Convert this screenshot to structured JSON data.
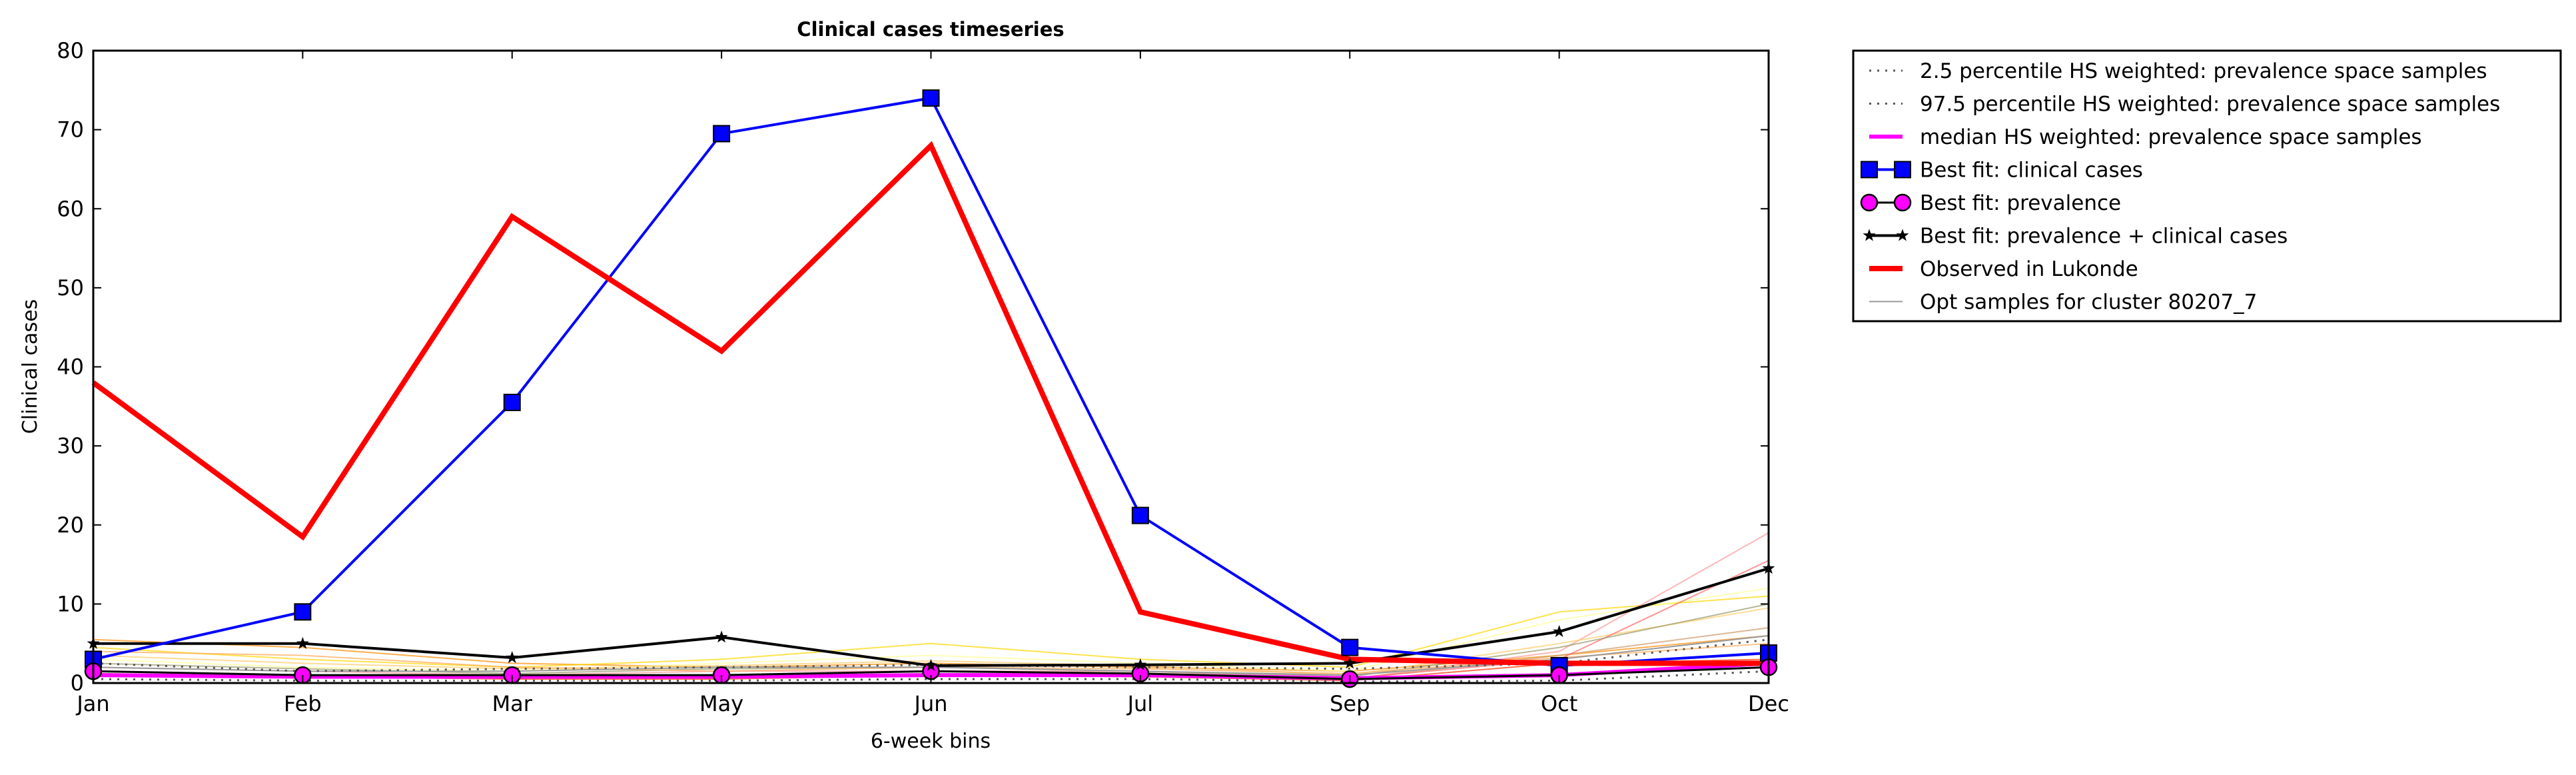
{
  "chart_data": {
    "type": "line",
    "title": "Clinical cases timeseries",
    "xlabel": "6-week bins",
    "ylabel": "Clinical cases",
    "categories": [
      "Jan",
      "Feb",
      "Mar",
      "May",
      "Jun",
      "Jul",
      "Sep",
      "Oct",
      "Dec"
    ],
    "ylim": [
      0,
      80
    ],
    "yticks": [
      0,
      10,
      20,
      30,
      40,
      50,
      60,
      70,
      80
    ],
    "grid": false,
    "legend_position": "outside-top-right",
    "series": [
      {
        "name": "2.5 percentile HS weighted: prevalence space samples",
        "style": "dotted",
        "color": "#555555",
        "values": [
          0.5,
          0.3,
          0.3,
          0.3,
          0.5,
          0.5,
          0.2,
          0.3,
          1.5
        ]
      },
      {
        "name": "97.5 percentile HS weighted: prevalence space samples",
        "style": "dotted",
        "color": "#555555",
        "values": [
          2.5,
          1.5,
          1.8,
          2.0,
          2.3,
          2.0,
          1.8,
          2.5,
          5.5
        ]
      },
      {
        "name": "median HS weighted: prevalence space samples",
        "style": "solid",
        "color": "#ff00ff",
        "values": [
          1.0,
          0.8,
          0.8,
          0.8,
          1.0,
          1.0,
          0.6,
          1.0,
          2.5
        ]
      },
      {
        "name": "Best fit: clinical cases",
        "style": "solid",
        "marker": "square",
        "color": "#0000ff",
        "values": [
          3.0,
          9.0,
          35.5,
          69.5,
          74.0,
          21.2,
          4.5,
          2.2,
          3.8
        ]
      },
      {
        "name": "Best fit: prevalence",
        "style": "solid",
        "marker": "circle",
        "color": "#ff00ff",
        "values": [
          1.5,
          1.0,
          1.0,
          1.0,
          1.5,
          1.2,
          0.5,
          1.0,
          2.0
        ]
      },
      {
        "name": "Best fit: prevalence + clinical cases",
        "style": "solid",
        "marker": "star",
        "color": "#000000",
        "values": [
          5.0,
          5.0,
          3.2,
          5.8,
          2.2,
          2.3,
          2.5,
          6.5,
          14.5
        ]
      },
      {
        "name": "Observed in Lukonde",
        "style": "solid",
        "color": "#ff0000",
        "values": [
          38.0,
          18.5,
          59.0,
          42.0,
          68.0,
          9.0,
          3.0,
          2.5,
          2.5
        ]
      },
      {
        "name": "Opt samples for cluster 80207_7",
        "style": "thin",
        "color": "#999999",
        "values": [
          2.0,
          1.5,
          1.5,
          2.0,
          2.0,
          1.5,
          1.0,
          3.0,
          6.0
        ]
      }
    ],
    "sample_curves": [
      {
        "color": "#ff8c00",
        "values": [
          5.5,
          4.5,
          2.5,
          2.0,
          2.5,
          2.0,
          1.5,
          3.5,
          6.0
        ]
      },
      {
        "color": "#ffd700",
        "values": [
          4.5,
          3.0,
          2.0,
          3.0,
          5.0,
          3.0,
          2.0,
          9.0,
          11.0
        ]
      },
      {
        "color": "#ff9999",
        "values": [
          2.0,
          1.5,
          1.0,
          1.5,
          1.5,
          1.5,
          0.5,
          4.0,
          19.0
        ]
      },
      {
        "color": "#ffff99",
        "values": [
          3.0,
          2.0,
          1.5,
          2.5,
          3.5,
          2.5,
          1.5,
          8.0,
          12.0
        ]
      },
      {
        "color": "#cc9966",
        "values": [
          1.0,
          0.8,
          0.6,
          0.8,
          1.2,
          1.0,
          0.5,
          3.5,
          7.0
        ]
      },
      {
        "color": "#ffcc66",
        "values": [
          3.5,
          2.5,
          1.8,
          2.2,
          2.8,
          2.2,
          1.0,
          5.0,
          9.5
        ]
      },
      {
        "color": "#ff6666",
        "values": [
          1.5,
          1.0,
          0.8,
          1.0,
          1.5,
          1.2,
          0.6,
          3.0,
          15.5
        ]
      },
      {
        "color": "#999966",
        "values": [
          2.5,
          1.8,
          1.2,
          1.8,
          2.0,
          1.5,
          0.8,
          4.5,
          10.0
        ]
      },
      {
        "color": "#ffaa55",
        "values": [
          4.0,
          3.5,
          2.0,
          1.5,
          2.0,
          1.8,
          1.2,
          3.2,
          5.0
        ]
      },
      {
        "color": "#ff3300",
        "values": [
          1.2,
          0.8,
          0.5,
          0.5,
          1.0,
          0.8,
          0.3,
          2.5,
          3.0
        ]
      }
    ]
  }
}
